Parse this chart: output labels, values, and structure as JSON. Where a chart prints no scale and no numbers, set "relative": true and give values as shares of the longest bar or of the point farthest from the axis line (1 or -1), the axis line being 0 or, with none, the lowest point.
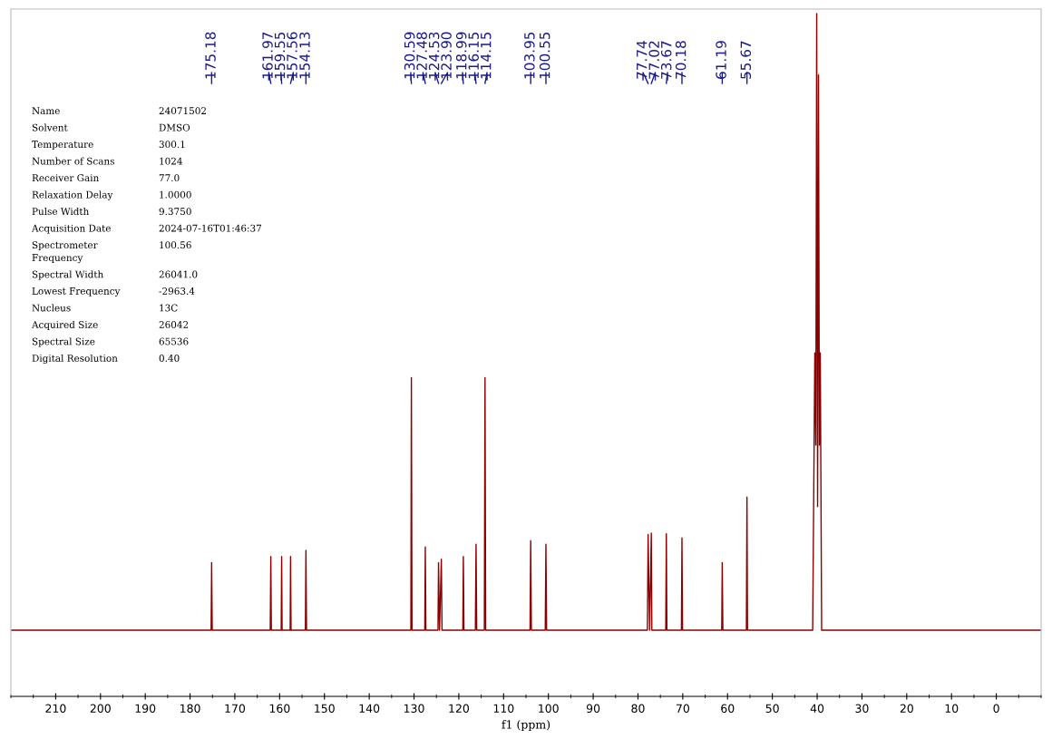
{
  "chart_data": {
    "type": "line",
    "relative": true,
    "xlabel": "f1 (ppm)",
    "xlim": [
      220,
      -10
    ],
    "xticks": [
      210,
      200,
      190,
      180,
      170,
      160,
      150,
      140,
      130,
      120,
      110,
      100,
      90,
      80,
      70,
      60,
      50,
      40,
      30,
      20,
      10,
      0
    ],
    "grid": false,
    "marker": "none",
    "line_style": "solid",
    "series": [
      {
        "color": "#8b0000",
        "x": [
          220,
          175.3,
          175.18,
          175.05,
          162.1,
          161.97,
          161.85,
          159.65,
          159.55,
          159.45,
          157.65,
          157.56,
          157.45,
          154.25,
          154.13,
          154.0,
          130.7,
          130.59,
          130.45,
          127.6,
          127.48,
          127.35,
          124.65,
          124.53,
          124.3,
          123.9,
          123.75,
          119.1,
          118.99,
          118.85,
          116.3,
          116.15,
          116.0,
          114.3,
          114.15,
          114.0,
          104.1,
          103.95,
          103.8,
          100.7,
          100.55,
          100.4,
          77.9,
          77.74,
          77.4,
          77.02,
          76.9,
          73.8,
          73.67,
          73.55,
          70.3,
          70.18,
          70.05,
          61.3,
          61.19,
          61.05,
          55.8,
          55.67,
          55.55,
          41.0,
          40.52,
          40.3,
          40.1,
          39.9,
          39.7,
          39.5,
          39.3,
          39.0,
          -10
        ],
        "values": [
          0.097,
          0.097,
          0.196,
          0.097,
          0.097,
          0.205,
          0.097,
          0.097,
          0.205,
          0.097,
          0.097,
          0.205,
          0.097,
          0.097,
          0.214,
          0.097,
          0.097,
          0.467,
          0.097,
          0.097,
          0.219,
          0.097,
          0.097,
          0.196,
          0.097,
          0.201,
          0.097,
          0.097,
          0.205,
          0.097,
          0.097,
          0.223,
          0.097,
          0.097,
          0.467,
          0.097,
          0.097,
          0.228,
          0.097,
          0.097,
          0.223,
          0.097,
          0.097,
          0.237,
          0.097,
          0.239,
          0.097,
          0.097,
          0.238,
          0.097,
          0.097,
          0.232,
          0.097,
          0.097,
          0.196,
          0.097,
          0.097,
          0.292,
          0.097,
          0.097,
          0.503,
          0.368,
          1.0,
          0.278,
          0.91,
          0.368,
          0.503,
          0.097,
          0.097
        ]
      }
    ],
    "annotations": [
      {
        "text": "175.18",
        "x": 175.18
      },
      {
        "text": "161.97",
        "x": 161.97
      },
      {
        "text": "159.55",
        "x": 159.55
      },
      {
        "text": "157.56",
        "x": 157.56
      },
      {
        "text": "154.13",
        "x": 154.13
      },
      {
        "text": "130.59",
        "x": 130.59
      },
      {
        "text": "127.48",
        "x": 127.48
      },
      {
        "text": "124.53",
        "x": 124.53
      },
      {
        "text": "123.90",
        "x": 123.9
      },
      {
        "text": "118.99",
        "x": 118.99
      },
      {
        "text": "116.15",
        "x": 116.15
      },
      {
        "text": "114.15",
        "x": 114.15
      },
      {
        "text": "103.95",
        "x": 103.95
      },
      {
        "text": "100.55",
        "x": 100.55
      },
      {
        "text": "77.74",
        "x": 77.74
      },
      {
        "text": "77.02",
        "x": 77.02
      },
      {
        "text": "73.67",
        "x": 73.67
      },
      {
        "text": "70.18",
        "x": 70.18
      },
      {
        "text": "61.19",
        "x": 61.19
      },
      {
        "text": "55.67",
        "x": 55.67
      },
      "Name",
      "24071502",
      "Solvent",
      "DMSO",
      "Temperature",
      "300.1",
      "Number of Scans",
      "1024",
      "Receiver Gain",
      "77.0",
      "Relaxation Delay",
      "1.0000",
      "Pulse Width",
      "9.3750",
      "Acquisition Date",
      "2024-07-16T01:46:37",
      "Spectrometer\nFrequency",
      "100.56",
      "Spectral Width",
      "26041.0",
      "Lowest Frequency",
      "-2963.4",
      "Nucleus",
      "13C",
      "Acquired Size",
      "26042",
      "Spectral Size",
      "65536",
      "Digital Resolution",
      "0.40"
    ]
  }
}
